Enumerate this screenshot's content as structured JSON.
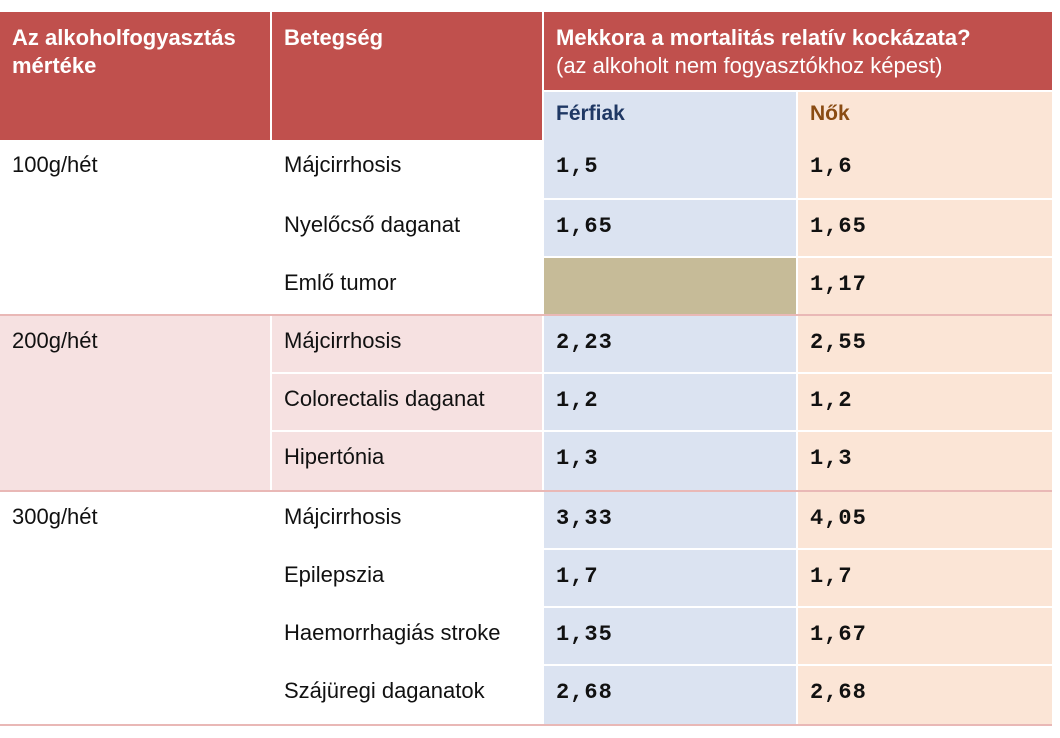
{
  "header": {
    "col_consumption": "Az alkoholfogyasztás mértéke",
    "col_disease": "Betegség",
    "col_risk_title": "Mekkora a mortalitás relatív kockázata?",
    "col_risk_subtitle": "(az alkoholt nem fogyasztókhoz képest)",
    "col_men": "Férfiak",
    "col_women": "Nők"
  },
  "groups": [
    {
      "level": "100g/hét",
      "rows": [
        {
          "disease": "Májcirrhosis",
          "men": "1,5",
          "women": "1,6"
        },
        {
          "disease": "Nyelőcső daganat",
          "men": "1,65",
          "women": "1,65"
        },
        {
          "disease": "Emlő tumor",
          "men": "",
          "women": "1,17"
        }
      ]
    },
    {
      "level": "200g/hét",
      "rows": [
        {
          "disease": "Májcirrhosis",
          "men": "2,23",
          "women": "2,55"
        },
        {
          "disease": "Colorectalis daganat",
          "men": "1,2",
          "women": "1,2"
        },
        {
          "disease": "Hipertónia",
          "men": "1,3",
          "women": "1,3"
        }
      ]
    },
    {
      "level": "300g/hét",
      "rows": [
        {
          "disease": "Májcirrhosis",
          "men": "3,33",
          "women": "4,05"
        },
        {
          "disease": "Epilepszia",
          "men": "1,7",
          "women": "1,7"
        },
        {
          "disease": "Haemorrhagiás stroke",
          "men": "1,35",
          "women": "1,67"
        },
        {
          "disease": "Szájüregi daganatok",
          "men": "2,68",
          "women": "2,68"
        }
      ]
    }
  ],
  "colors": {
    "header_red": "#c0504d",
    "men_bg": "#dbe3f1",
    "women_bg": "#fbe5d6",
    "group2_bg": "#f6e1e1",
    "empty_cell": "#c6bb98"
  }
}
